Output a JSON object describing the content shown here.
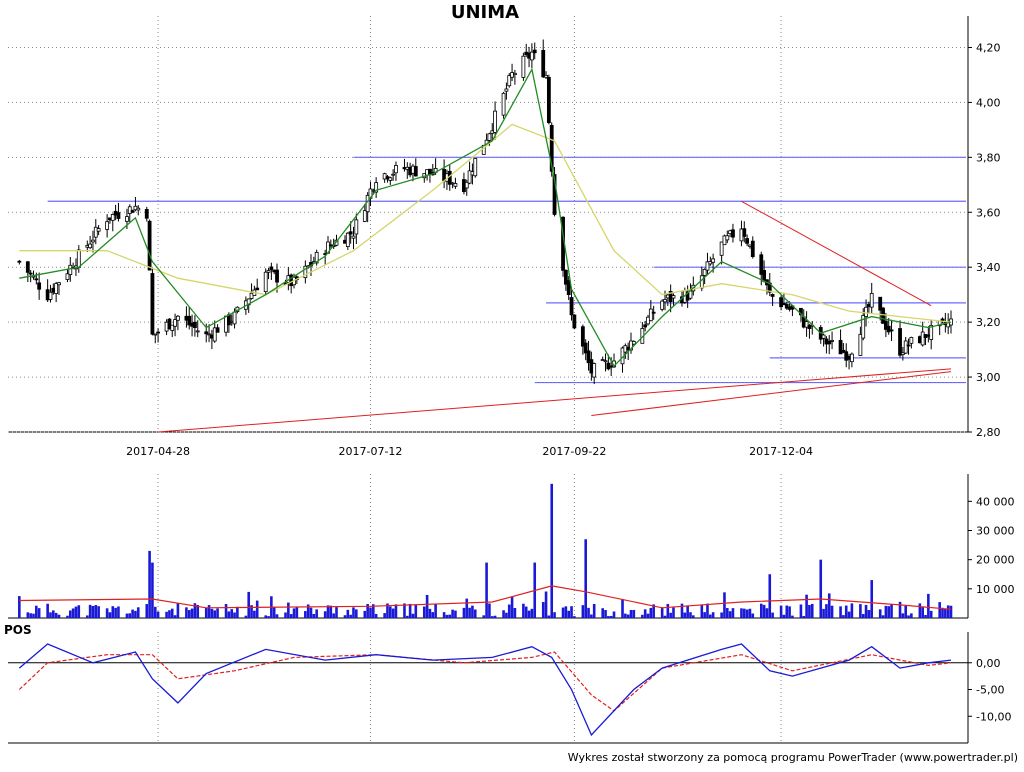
{
  "chart_data": [
    {
      "type": "candlestick",
      "title": "UNIMA",
      "ylim": [
        2.8,
        4.3
      ],
      "y_ticks": [
        "2,80",
        "3,00",
        "3,20",
        "3,40",
        "3,60",
        "3,80",
        "4,00",
        "4,20"
      ],
      "x_ticks": [
        "2017-04-28",
        "2017-07-12",
        "2017-09-22",
        "2017-12-04"
      ],
      "grid": true,
      "legend": "none",
      "colors": {
        "up_candle": "#ffffff",
        "down_candle": "#000000",
        "ma_short": "#228B22",
        "ma_long": "#d6d66a",
        "support_resistance": "#6a6aff",
        "trendline": "#e02020",
        "grid": "#888888"
      },
      "horizontal_levels": [
        3.8,
        3.64,
        3.4,
        3.27,
        3.07,
        2.98
      ],
      "trendlines": [
        {
          "from": [
            "2017-04-28",
            2.8
          ],
          "to": [
            "2018-02-02",
            3.03
          ]
        },
        {
          "from": [
            "2017-09-28",
            2.86
          ],
          "to": [
            "2018-02-02",
            3.02
          ]
        },
        {
          "from": [
            "2017-11-20",
            3.64
          ],
          "to": [
            "2018-01-26",
            3.26
          ]
        }
      ],
      "close_path": [
        [
          "2017-03-10",
          3.42
        ],
        [
          "2017-03-20",
          3.3
        ],
        [
          "2017-03-31",
          3.44
        ],
        [
          "2017-04-10",
          3.58
        ],
        [
          "2017-04-20",
          3.62
        ],
        [
          "2017-04-24",
          3.6
        ],
        [
          "2017-04-26",
          3.15
        ],
        [
          "2017-05-05",
          3.22
        ],
        [
          "2017-05-15",
          3.15
        ],
        [
          "2017-05-25",
          3.22
        ],
        [
          "2017-06-05",
          3.38
        ],
        [
          "2017-06-15",
          3.34
        ],
        [
          "2017-06-26",
          3.47
        ],
        [
          "2017-07-06",
          3.53
        ],
        [
          "2017-07-14",
          3.73
        ],
        [
          "2017-07-24",
          3.76
        ],
        [
          "2017-08-03",
          3.74
        ],
        [
          "2017-08-14",
          3.7
        ],
        [
          "2017-08-24",
          3.92
        ],
        [
          "2017-08-31",
          4.1
        ],
        [
          "2017-09-07",
          4.18
        ],
        [
          "2017-09-12",
          4.1
        ],
        [
          "2017-09-15",
          3.6
        ],
        [
          "2017-09-21",
          3.22
        ],
        [
          "2017-09-28",
          3.02
        ],
        [
          "2017-10-06",
          3.06
        ],
        [
          "2017-10-13",
          3.14
        ],
        [
          "2017-10-23",
          3.28
        ],
        [
          "2017-11-02",
          3.3
        ],
        [
          "2017-11-13",
          3.48
        ],
        [
          "2017-11-20",
          3.55
        ],
        [
          "2017-11-30",
          3.3
        ],
        [
          "2017-12-08",
          3.24
        ],
        [
          "2017-12-18",
          3.14
        ],
        [
          "2017-12-28",
          3.08
        ],
        [
          "2018-01-05",
          3.28
        ],
        [
          "2018-01-15",
          3.1
        ],
        [
          "2018-01-25",
          3.16
        ],
        [
          "2018-02-02",
          3.2
        ]
      ],
      "ma_short": [
        [
          "2017-03-10",
          3.36
        ],
        [
          "2017-03-31",
          3.4
        ],
        [
          "2017-04-20",
          3.58
        ],
        [
          "2017-04-26",
          3.42
        ],
        [
          "2017-05-15",
          3.18
        ],
        [
          "2017-06-05",
          3.3
        ],
        [
          "2017-06-26",
          3.44
        ],
        [
          "2017-07-14",
          3.68
        ],
        [
          "2017-08-03",
          3.74
        ],
        [
          "2017-08-24",
          3.86
        ],
        [
          "2017-09-07",
          4.12
        ],
        [
          "2017-09-15",
          3.72
        ],
        [
          "2017-09-21",
          3.32
        ],
        [
          "2017-10-06",
          3.04
        ],
        [
          "2017-10-23",
          3.22
        ],
        [
          "2017-11-13",
          3.42
        ],
        [
          "2017-11-30",
          3.34
        ],
        [
          "2017-12-18",
          3.16
        ],
        [
          "2018-01-05",
          3.22
        ],
        [
          "2018-01-25",
          3.18
        ],
        [
          "2018-02-02",
          3.2
        ]
      ],
      "ma_long": [
        [
          "2017-03-10",
          3.46
        ],
        [
          "2017-04-10",
          3.46
        ],
        [
          "2017-05-05",
          3.36
        ],
        [
          "2017-06-05",
          3.3
        ],
        [
          "2017-07-06",
          3.46
        ],
        [
          "2017-08-03",
          3.68
        ],
        [
          "2017-08-31",
          3.92
        ],
        [
          "2017-09-15",
          3.86
        ],
        [
          "2017-10-06",
          3.46
        ],
        [
          "2017-10-23",
          3.3
        ],
        [
          "2017-11-13",
          3.34
        ],
        [
          "2017-12-08",
          3.3
        ],
        [
          "2017-12-28",
          3.24
        ],
        [
          "2018-01-15",
          3.22
        ],
        [
          "2018-02-02",
          3.2
        ]
      ]
    },
    {
      "type": "bar",
      "series_name": "volume",
      "ylim": [
        0,
        48000
      ],
      "y_ticks": [
        "10 000",
        "20 000",
        "30 000",
        "40 000"
      ],
      "colors": {
        "bars": "#1a1ad6",
        "average_line": "#e02020"
      },
      "notable_bars": [
        [
          "2017-04-25",
          23000
        ],
        [
          "2017-04-26",
          19000
        ],
        [
          "2017-08-22",
          19000
        ],
        [
          "2017-09-08",
          19000
        ],
        [
          "2017-09-14",
          46000
        ],
        [
          "2017-09-26",
          27000
        ],
        [
          "2017-11-30",
          15000
        ],
        [
          "2017-12-18",
          20000
        ],
        [
          "2018-01-05",
          13000
        ]
      ],
      "average_path": [
        [
          "2017-03-10",
          6000
        ],
        [
          "2017-04-26",
          6500
        ],
        [
          "2017-05-15",
          3500
        ],
        [
          "2017-07-12",
          4000
        ],
        [
          "2017-08-24",
          5500
        ],
        [
          "2017-09-14",
          11000
        ],
        [
          "2017-09-26",
          9000
        ],
        [
          "2017-10-23",
          3500
        ],
        [
          "2017-11-20",
          5500
        ],
        [
          "2017-12-18",
          6500
        ],
        [
          "2018-01-15",
          4500
        ],
        [
          "2018-02-02",
          3000
        ]
      ]
    },
    {
      "type": "line",
      "title": "POS",
      "ylim": [
        -15,
        5
      ],
      "y_ticks": [
        "0,00",
        "-5,00",
        "-10,00"
      ],
      "colors": {
        "pos": "#1a1ad6",
        "signal": "#e02020"
      },
      "series": [
        {
          "values": [
            [
              "2017-03-10",
              -1
            ],
            [
              "2017-03-20",
              3.5
            ],
            [
              "2017-04-05",
              0
            ],
            [
              "2017-04-20",
              2
            ],
            [
              "2017-04-26",
              -3
            ],
            [
              "2017-05-05",
              -7.5
            ],
            [
              "2017-05-15",
              -2
            ],
            [
              "2017-06-05",
              2.5
            ],
            [
              "2017-06-26",
              0.5
            ],
            [
              "2017-07-14",
              1.5
            ],
            [
              "2017-08-03",
              0.5
            ],
            [
              "2017-08-24",
              1
            ],
            [
              "2017-09-07",
              3
            ],
            [
              "2017-09-14",
              1
            ],
            [
              "2017-09-21",
              -5
            ],
            [
              "2017-09-28",
              -13.5
            ],
            [
              "2017-10-13",
              -5
            ],
            [
              "2017-10-23",
              -1
            ],
            [
              "2017-11-13",
              2.5
            ],
            [
              "2017-11-20",
              3.5
            ],
            [
              "2017-11-30",
              -1.5
            ],
            [
              "2017-12-08",
              -2.5
            ],
            [
              "2017-12-28",
              0.5
            ],
            [
              "2018-01-05",
              3
            ],
            [
              "2018-01-15",
              -1
            ],
            [
              "2018-01-25",
              0
            ],
            [
              "2018-02-02",
              0.5
            ]
          ]
        },
        {
          "values": [
            [
              "2017-03-10",
              -5
            ],
            [
              "2017-03-20",
              0
            ],
            [
              "2017-04-10",
              1.5
            ],
            [
              "2017-04-26",
              1.5
            ],
            [
              "2017-05-05",
              -3
            ],
            [
              "2017-05-25",
              -1.5
            ],
            [
              "2017-06-15",
              1
            ],
            [
              "2017-07-14",
              1.5
            ],
            [
              "2017-08-14",
              0
            ],
            [
              "2017-09-07",
              1
            ],
            [
              "2017-09-15",
              2
            ],
            [
              "2017-09-28",
              -6
            ],
            [
              "2017-10-06",
              -9
            ],
            [
              "2017-10-23",
              -1
            ],
            [
              "2017-11-20",
              1.5
            ],
            [
              "2017-12-08",
              -1.5
            ],
            [
              "2018-01-05",
              1.5
            ],
            [
              "2018-01-25",
              -0.5
            ],
            [
              "2018-02-02",
              0
            ]
          ]
        }
      ]
    }
  ],
  "footer": {
    "credit": "Wykres został stworzony za pomocą programu PowerTrader (www.powertrader.pl)"
  },
  "labels": {
    "title": "UNIMA",
    "pos": "POS"
  }
}
